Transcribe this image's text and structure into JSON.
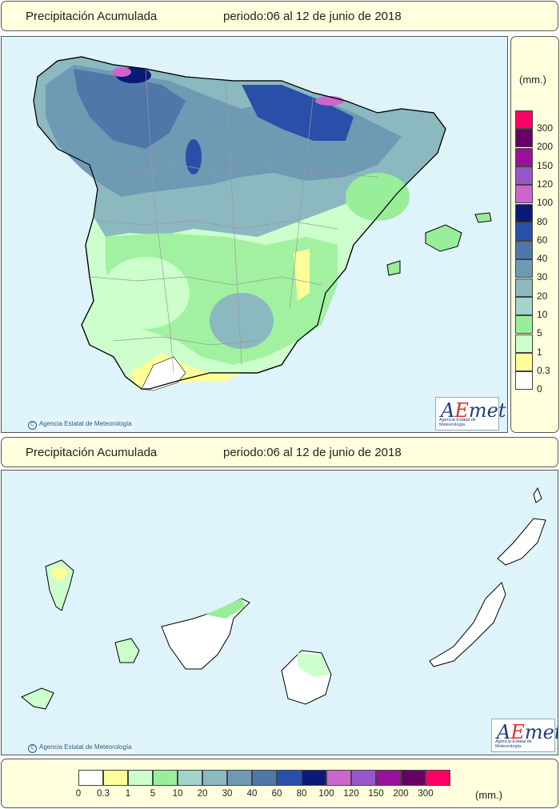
{
  "header_top": {
    "title": "Precipitación Acumulada",
    "period": "periodo:06 al 12 de junio de 2018"
  },
  "header_mid": {
    "title": "Precipitación Acumulada",
    "period": "periodo:06 al 12 de junio de 2018"
  },
  "credit": "Agencia Estatal de Meteorología",
  "credit_symbol": "C",
  "logo": {
    "text_a": "A",
    "text_e": "E",
    "text_met": "met",
    "subtitle": "Agencia Estatal de Meteorología"
  },
  "legend": {
    "unit": "(mm.)",
    "classes": [
      {
        "label": "0",
        "color": "#ffffff"
      },
      {
        "label": "0.3",
        "color": "#ffff99"
      },
      {
        "label": "1",
        "color": "#ccffcc"
      },
      {
        "label": "5",
        "color": "#99ee99"
      },
      {
        "label": "10",
        "color": "#a2d4cc"
      },
      {
        "label": "20",
        "color": "#8cb8c0"
      },
      {
        "label": "30",
        "color": "#6f9ab4"
      },
      {
        "label": "40",
        "color": "#4f77a8"
      },
      {
        "label": "60",
        "color": "#2a4fa8"
      },
      {
        "label": "80",
        "color": "#0a1a78"
      },
      {
        "label": "100",
        "color": "#cc66cc"
      },
      {
        "label": "120",
        "color": "#9955cc"
      },
      {
        "label": "150",
        "color": "#991199"
      },
      {
        "label": "200",
        "color": "#660066"
      },
      {
        "label": "300",
        "color": "#ff0066"
      }
    ]
  }
}
